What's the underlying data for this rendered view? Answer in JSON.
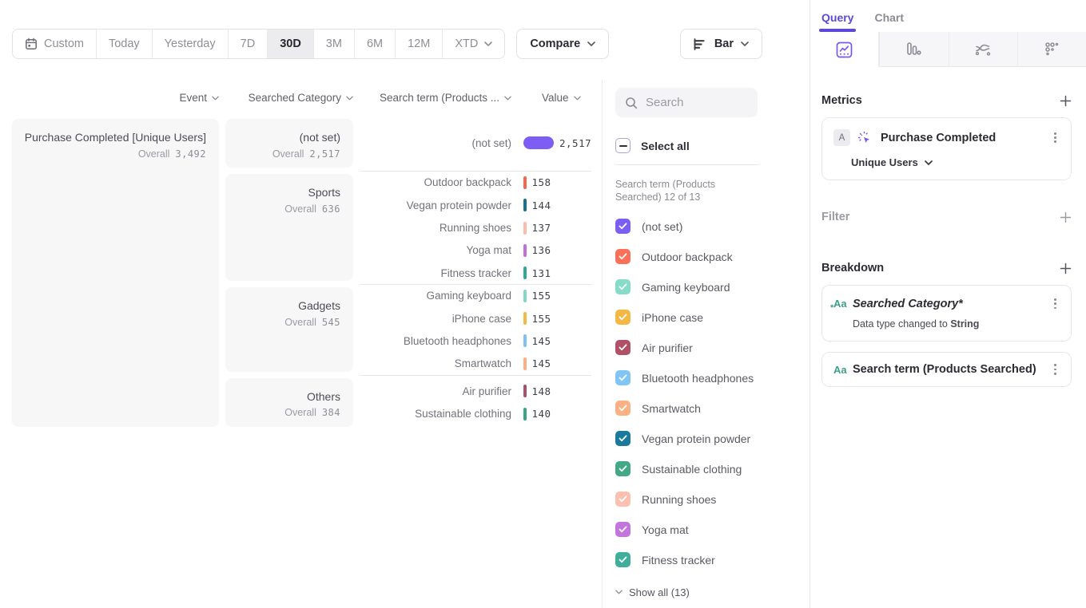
{
  "accent": "#5b48d8",
  "toolbar": {
    "custom_label": "Custom",
    "date_buttons": [
      "Today",
      "Yesterday",
      "7D",
      "30D",
      "3M",
      "6M",
      "12M"
    ],
    "active_button": "30D",
    "xtd_label": "XTD",
    "compare_label": "Compare",
    "chart_type_label": "Bar"
  },
  "columns": {
    "event": "Event",
    "category": "Searched Category",
    "search_term": "Search term (Products ...",
    "value": "Value"
  },
  "event_card": {
    "title": "Purchase Completed [Unique Users]",
    "overall_label": "Overall",
    "overall_value": "3,492"
  },
  "groups": [
    {
      "category": "(not set)",
      "overall_label": "Overall",
      "overall": "2,517",
      "rows": [
        {
          "term": "(not set)",
          "value": "2,517",
          "color": "#7c5ef5",
          "wide": true
        }
      ]
    },
    {
      "category": "Sports",
      "overall_label": "Overall",
      "overall": "636",
      "rows": [
        {
          "term": "Outdoor backpack",
          "value": "158",
          "color": "#f4694b"
        },
        {
          "term": "Vegan protein powder",
          "value": "144",
          "color": "#17718f"
        },
        {
          "term": "Running shoes",
          "value": "137",
          "color": "#fbbcab"
        },
        {
          "term": "Yoga mat",
          "value": "136",
          "color": "#c16fdc"
        },
        {
          "term": "Fitness tracker",
          "value": "131",
          "color": "#35a893"
        }
      ]
    },
    {
      "category": "Gadgets",
      "overall_label": "Overall",
      "overall": "545",
      "rows": [
        {
          "term": "Gaming keyboard",
          "value": "155",
          "color": "#7fd9c6"
        },
        {
          "term": "iPhone case",
          "value": "155",
          "color": "#f6b844"
        },
        {
          "term": "Bluetooth headphones",
          "value": "145",
          "color": "#7fc3f4"
        },
        {
          "term": "Smartwatch",
          "value": "145",
          "color": "#fbae80"
        }
      ]
    },
    {
      "category": "Others",
      "overall_label": "Overall",
      "overall": "384",
      "rows": [
        {
          "term": "Air purifier",
          "value": "148",
          "color": "#a85168"
        },
        {
          "term": "Sustainable clothing",
          "value": "140",
          "color": "#3aa583"
        }
      ]
    }
  ],
  "legend_panel": {
    "search_placeholder": "Search",
    "select_all_label": "Select all",
    "list_label": "Search term (Products Searched) 12 of 13",
    "items": [
      {
        "label": "(not set)",
        "color": "#7c5ef5",
        "checked": true
      },
      {
        "label": "Outdoor backpack",
        "color": "#fa7059",
        "checked": true
      },
      {
        "label": "Gaming keyboard",
        "color": "#85dcc8",
        "checked": true
      },
      {
        "label": "iPhone case",
        "color": "#f6b845",
        "checked": true
      },
      {
        "label": "Air purifier",
        "color": "#b05168",
        "checked": true
      },
      {
        "label": "Bluetooth headphones",
        "color": "#81c5f5",
        "checked": true
      },
      {
        "label": "Smartwatch",
        "color": "#fbb184",
        "checked": true
      },
      {
        "label": "Vegan protein powder",
        "color": "#1a7a9e",
        "checked": true
      },
      {
        "label": "Sustainable clothing",
        "color": "#42a885",
        "checked": true
      },
      {
        "label": "Running shoes",
        "color": "#fbc0b0",
        "checked": true
      },
      {
        "label": "Yoga mat",
        "color": "#c474dd",
        "checked": true
      },
      {
        "label": "Fitness tracker",
        "color": "#3fae9a",
        "checked": true
      }
    ],
    "show_all_label": "Show all (13)"
  },
  "query_panel": {
    "tabs": [
      {
        "label": "Query",
        "active": true
      },
      {
        "label": "Chart",
        "active": false
      }
    ],
    "icon_tabs": [
      "insights",
      "funnels",
      "flows",
      "retention"
    ],
    "metrics": {
      "heading": "Metrics",
      "badge": "A",
      "metric_name": "Purchase Completed",
      "metric_type": "Unique Users"
    },
    "filter": {
      "heading": "Filter"
    },
    "breakdown": {
      "heading": "Breakdown",
      "items": [
        {
          "icon": "Aa",
          "label": "Searched Category*",
          "note_prefix": "Data type changed to ",
          "note_bold": "String"
        },
        {
          "icon": "Aa",
          "label": "Search term (Products Searched)"
        }
      ]
    }
  }
}
